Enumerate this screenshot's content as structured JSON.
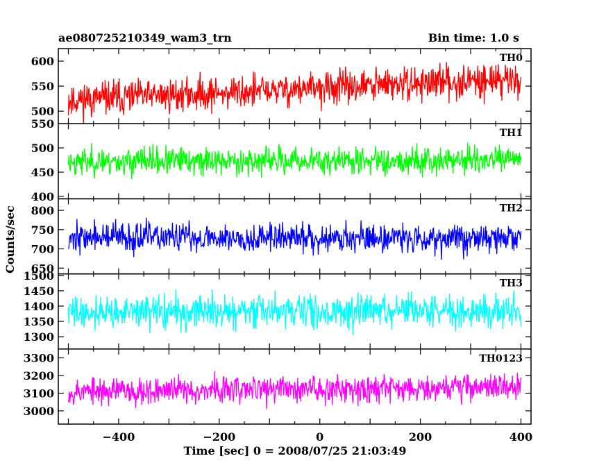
{
  "header": {
    "title": "ae080725210349_wam3_trn",
    "bin_time": "Bin time: 1.0 s"
  },
  "chart_data": {
    "type": "line",
    "xlabel": "Time [sec] 0 = 2008/07/25 21:03:49",
    "ylabel": "Counts/sec",
    "xlim": [
      -520,
      420
    ],
    "x_range": [
      -500,
      400
    ],
    "bin": 1.0,
    "x_ticks": [
      -400,
      -200,
      0,
      200,
      400
    ],
    "x_tick_labels": [
      "−400",
      "−200",
      "0",
      "200",
      "400"
    ],
    "panels": [
      {
        "label": "TH0",
        "color": "#ff0000",
        "ylim": [
          475,
          625
        ],
        "yticks": [
          500,
          550,
          600
        ],
        "mean_start": 522,
        "mean_end": 565,
        "noise": 24,
        "seed": 11
      },
      {
        "label": "TH1",
        "color": "#00ff00",
        "ylim": [
          395,
          550
        ],
        "yticks": [
          400,
          450,
          500,
          550
        ],
        "mean_start": 472,
        "mean_end": 475,
        "noise": 20,
        "seed": 23
      },
      {
        "label": "TH2",
        "color": "#0000ff",
        "ylim": [
          635,
          830
        ],
        "yticks": [
          650,
          700,
          750,
          800
        ],
        "mean_start": 730,
        "mean_end": 728,
        "noise": 27,
        "seed": 37
      },
      {
        "label": "TH3",
        "color": "#00ffff",
        "ylim": [
          1260,
          1505
        ],
        "yticks": [
          1300,
          1350,
          1400,
          1450,
          1500
        ],
        "mean_start": 1380,
        "mean_end": 1385,
        "noise": 38,
        "seed": 41
      },
      {
        "label": "TH0123",
        "color": "#ff00ff",
        "ylim": [
          2925,
          3350
        ],
        "yticks": [
          3000,
          3100,
          3200,
          3300
        ],
        "mean_start": 3110,
        "mean_end": 3140,
        "noise": 55,
        "seed": 53
      }
    ]
  }
}
